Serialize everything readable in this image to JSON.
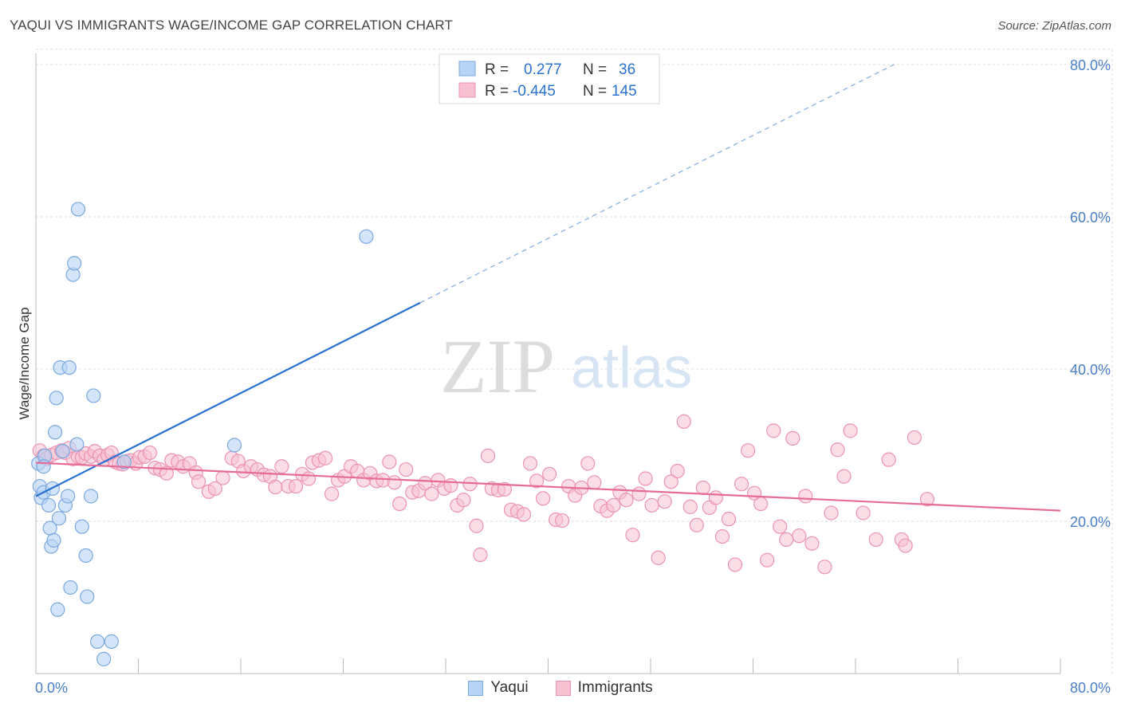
{
  "header": {
    "title": "YAQUI VS IMMIGRANTS WAGE/INCOME GAP CORRELATION CHART",
    "source": "Source: ZipAtlas.com"
  },
  "watermark": {
    "zip": "ZIP",
    "atlas": "atlas"
  },
  "legend_top": {
    "rows": [
      {
        "r_label": "R =",
        "r_value": "0.277",
        "n_label": "N =",
        "n_value": "36"
      },
      {
        "r_label": "R =",
        "r_value": "-0.445",
        "n_label": "N =",
        "n_value": "145"
      }
    ]
  },
  "legend_bottom": {
    "yaqui": "Yaqui",
    "immigrants": "Immigrants"
  },
  "colors": {
    "yaqui_fill": "#b7d3f5",
    "yaqui_stroke": "#7aa8e0",
    "yaqui_line": "#2a72d0",
    "imm_fill": "#f7c1d2",
    "imm_stroke": "#ec93b3",
    "imm_line": "#e66c98",
    "value_text": "#2a72d0",
    "grid": "#dddddd"
  },
  "chart_data": {
    "type": "scatter",
    "title": "YAQUI VS IMMIGRANTS WAGE/INCOME GAP CORRELATION CHART",
    "xlabel": "",
    "ylabel": "Wage/Income Gap",
    "xlim": [
      0,
      80
    ],
    "ylim": [
      0,
      82
    ],
    "x_tick_labels": [
      "0.0%",
      "80.0%"
    ],
    "y_tick_labels": [
      "20.0%",
      "40.0%",
      "60.0%",
      "80.0%"
    ],
    "y_ticks": [
      20,
      40,
      60,
      80
    ],
    "grid": true,
    "legend_position": "top-center",
    "series": [
      {
        "name": "Yaqui",
        "R": 0.277,
        "N": 36,
        "trend": {
          "x": [
            0,
            30
          ],
          "y": [
            23.3,
            48.7
          ],
          "extended_to": [
            67,
            80
          ]
        },
        "points": [
          [
            0.2,
            27.6
          ],
          [
            0.4,
            23.1
          ],
          [
            0.3,
            24.6
          ],
          [
            0.6,
            23.8
          ],
          [
            0.7,
            28.6
          ],
          [
            0.6,
            27.2
          ],
          [
            1.0,
            22.1
          ],
          [
            1.1,
            19.1
          ],
          [
            1.2,
            16.7
          ],
          [
            1.3,
            24.3
          ],
          [
            1.4,
            17.5
          ],
          [
            1.5,
            31.7
          ],
          [
            1.6,
            36.2
          ],
          [
            1.8,
            20.4
          ],
          [
            1.9,
            40.2
          ],
          [
            2.1,
            29.2
          ],
          [
            2.3,
            22.1
          ],
          [
            2.5,
            23.3
          ],
          [
            2.6,
            40.2
          ],
          [
            2.7,
            11.3
          ],
          [
            2.9,
            52.4
          ],
          [
            3.0,
            53.9
          ],
          [
            3.2,
            30.1
          ],
          [
            3.3,
            61.0
          ],
          [
            3.6,
            19.3
          ],
          [
            3.9,
            15.5
          ],
          [
            4.0,
            10.1
          ],
          [
            4.3,
            23.3
          ],
          [
            4.5,
            36.5
          ],
          [
            4.8,
            4.2
          ],
          [
            5.3,
            1.9
          ],
          [
            5.9,
            4.2
          ],
          [
            6.9,
            27.8
          ],
          [
            15.5,
            30.0
          ],
          [
            25.8,
            57.4
          ],
          [
            1.7,
            8.4
          ]
        ]
      },
      {
        "name": "Immigrants",
        "R": -0.445,
        "N": 145,
        "trend": {
          "x": [
            0,
            80
          ],
          "y": [
            27.7,
            21.4
          ]
        },
        "points": [
          [
            0.3,
            29.3
          ],
          [
            0.6,
            28.6
          ],
          [
            0.8,
            28.2
          ],
          [
            1.2,
            28.7
          ],
          [
            1.6,
            29.0
          ],
          [
            2.0,
            29.3
          ],
          [
            2.3,
            29.0
          ],
          [
            2.6,
            29.6
          ],
          [
            2.9,
            28.2
          ],
          [
            3.3,
            28.5
          ],
          [
            3.6,
            28.4
          ],
          [
            3.9,
            28.9
          ],
          [
            4.3,
            28.5
          ],
          [
            4.6,
            29.2
          ],
          [
            5.0,
            28.6
          ],
          [
            5.3,
            28.1
          ],
          [
            5.6,
            28.7
          ],
          [
            5.9,
            29.0
          ],
          [
            6.2,
            27.8
          ],
          [
            6.5,
            27.6
          ],
          [
            6.8,
            27.5
          ],
          [
            7.1,
            27.9
          ],
          [
            7.4,
            28.0
          ],
          [
            7.8,
            27.6
          ],
          [
            8.1,
            28.4
          ],
          [
            8.5,
            28.5
          ],
          [
            8.9,
            29.0
          ],
          [
            9.3,
            27.0
          ],
          [
            9.7,
            26.8
          ],
          [
            10.2,
            26.3
          ],
          [
            10.6,
            28.0
          ],
          [
            11.1,
            27.8
          ],
          [
            11.5,
            27.2
          ],
          [
            12.0,
            27.6
          ],
          [
            12.5,
            26.4
          ],
          [
            12.7,
            25.2
          ],
          [
            13.5,
            23.9
          ],
          [
            14.0,
            24.3
          ],
          [
            14.6,
            25.7
          ],
          [
            15.3,
            28.3
          ],
          [
            15.8,
            27.9
          ],
          [
            16.2,
            26.6
          ],
          [
            16.8,
            27.2
          ],
          [
            17.3,
            26.8
          ],
          [
            17.8,
            26.1
          ],
          [
            18.3,
            25.9
          ],
          [
            18.7,
            24.5
          ],
          [
            19.2,
            27.2
          ],
          [
            19.7,
            24.6
          ],
          [
            20.3,
            24.6
          ],
          [
            20.8,
            26.2
          ],
          [
            21.3,
            25.6
          ],
          [
            21.6,
            27.7
          ],
          [
            22.1,
            28.0
          ],
          [
            22.6,
            28.3
          ],
          [
            23.1,
            23.6
          ],
          [
            23.6,
            25.4
          ],
          [
            24.1,
            25.9
          ],
          [
            24.6,
            27.2
          ],
          [
            25.1,
            26.6
          ],
          [
            25.6,
            25.4
          ],
          [
            26.1,
            26.3
          ],
          [
            26.6,
            25.3
          ],
          [
            27.1,
            25.4
          ],
          [
            27.6,
            27.8
          ],
          [
            28.0,
            25.1
          ],
          [
            28.4,
            22.3
          ],
          [
            28.9,
            26.8
          ],
          [
            29.4,
            23.8
          ],
          [
            29.9,
            24.0
          ],
          [
            30.4,
            25.0
          ],
          [
            30.9,
            23.6
          ],
          [
            31.4,
            25.4
          ],
          [
            31.9,
            24.3
          ],
          [
            32.4,
            24.7
          ],
          [
            32.9,
            22.1
          ],
          [
            33.4,
            22.8
          ],
          [
            33.9,
            24.9
          ],
          [
            34.4,
            19.4
          ],
          [
            34.7,
            15.6
          ],
          [
            35.3,
            28.6
          ],
          [
            35.6,
            24.3
          ],
          [
            36.1,
            24.1
          ],
          [
            36.6,
            24.2
          ],
          [
            37.1,
            21.5
          ],
          [
            37.6,
            21.3
          ],
          [
            38.1,
            20.9
          ],
          [
            38.6,
            27.6
          ],
          [
            39.1,
            25.3
          ],
          [
            39.6,
            23.0
          ],
          [
            40.1,
            26.2
          ],
          [
            40.6,
            20.2
          ],
          [
            41.1,
            20.1
          ],
          [
            41.6,
            24.6
          ],
          [
            42.1,
            23.4
          ],
          [
            42.6,
            24.4
          ],
          [
            43.1,
            27.6
          ],
          [
            43.6,
            25.1
          ],
          [
            44.1,
            22.0
          ],
          [
            44.6,
            21.4
          ],
          [
            45.1,
            22.1
          ],
          [
            45.6,
            23.8
          ],
          [
            46.1,
            22.8
          ],
          [
            46.6,
            18.2
          ],
          [
            47.1,
            23.6
          ],
          [
            47.6,
            25.6
          ],
          [
            48.1,
            22.1
          ],
          [
            48.6,
            15.2
          ],
          [
            49.1,
            22.6
          ],
          [
            49.6,
            25.2
          ],
          [
            50.1,
            26.6
          ],
          [
            50.6,
            33.1
          ],
          [
            51.1,
            21.9
          ],
          [
            51.6,
            19.5
          ],
          [
            52.1,
            24.4
          ],
          [
            52.6,
            21.8
          ],
          [
            53.1,
            23.1
          ],
          [
            53.6,
            18.0
          ],
          [
            54.1,
            20.3
          ],
          [
            54.6,
            14.3
          ],
          [
            55.1,
            24.9
          ],
          [
            55.6,
            29.3
          ],
          [
            56.1,
            23.7
          ],
          [
            56.6,
            22.3
          ],
          [
            57.1,
            14.9
          ],
          [
            57.6,
            31.9
          ],
          [
            58.1,
            19.3
          ],
          [
            58.6,
            17.6
          ],
          [
            59.1,
            30.9
          ],
          [
            59.6,
            18.1
          ],
          [
            60.1,
            23.3
          ],
          [
            60.6,
            17.1
          ],
          [
            61.6,
            14.0
          ],
          [
            62.1,
            21.1
          ],
          [
            62.6,
            29.4
          ],
          [
            63.1,
            25.9
          ],
          [
            63.6,
            31.9
          ],
          [
            64.6,
            21.1
          ],
          [
            65.6,
            17.6
          ],
          [
            66.6,
            28.1
          ],
          [
            67.6,
            17.6
          ],
          [
            67.9,
            16.8
          ],
          [
            68.6,
            31.0
          ],
          [
            69.6,
            22.9
          ]
        ]
      }
    ]
  }
}
